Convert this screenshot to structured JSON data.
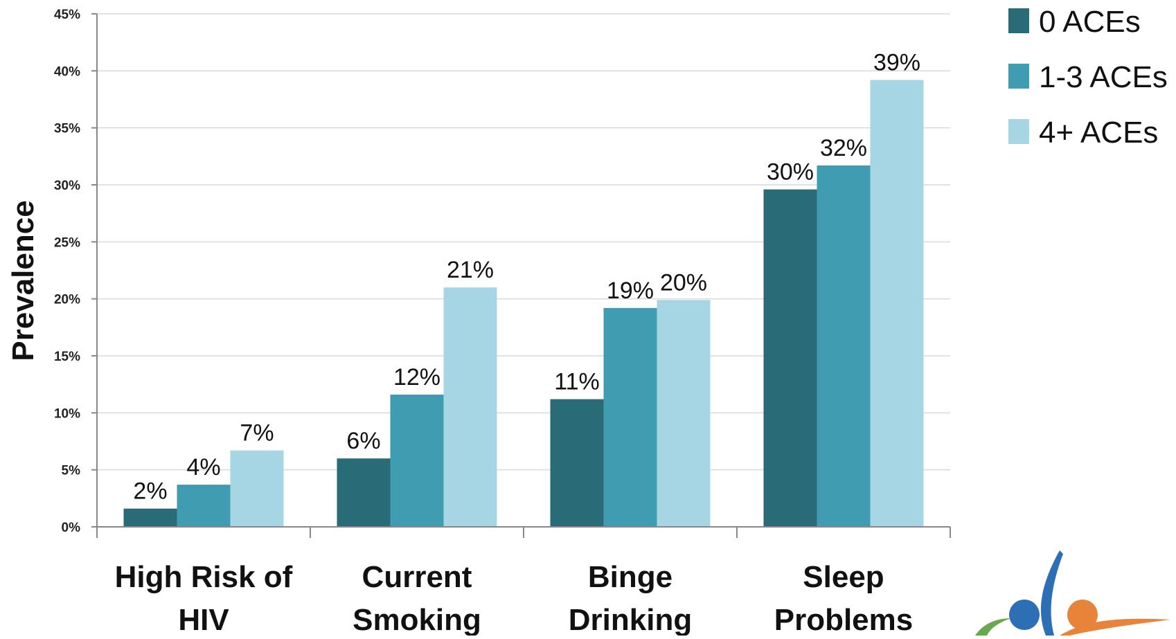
{
  "chart_data": {
    "type": "bar",
    "title": "",
    "xlabel": "",
    "ylabel": "Prevalence",
    "ylim": [
      0,
      45
    ],
    "yticks": [
      "0%",
      "5%",
      "10%",
      "15%",
      "20%",
      "25%",
      "30%",
      "35%",
      "40%",
      "45%"
    ],
    "categories": [
      [
        "High Risk of",
        "HIV"
      ],
      [
        "Current",
        "Smoking"
      ],
      [
        "Binge",
        "Drinking"
      ],
      [
        "Sleep",
        "Problems"
      ]
    ],
    "series": [
      {
        "name": "0 ACEs",
        "color": "#2a6b78",
        "values": [
          1.6,
          6.0,
          11.2,
          29.6
        ],
        "labels": [
          "2%",
          "6%",
          "11%",
          "30%"
        ]
      },
      {
        "name": "1-3 ACEs",
        "color": "#409cb0",
        "values": [
          3.7,
          11.6,
          19.2,
          31.7
        ],
        "labels": [
          "4%",
          "12%",
          "19%",
          "32%"
        ]
      },
      {
        "name": "4+ ACEs",
        "color": "#a6d6e3",
        "values": [
          6.7,
          21.0,
          19.9,
          39.2
        ],
        "labels": [
          "7%",
          "21%",
          "20%",
          "39%"
        ]
      }
    ],
    "grid": true,
    "legend": "top-right"
  },
  "logo": {
    "icon": "people-figures-logo-icon",
    "colors": [
      "#2d6fb5",
      "#e8833a",
      "#6aa84f"
    ]
  }
}
